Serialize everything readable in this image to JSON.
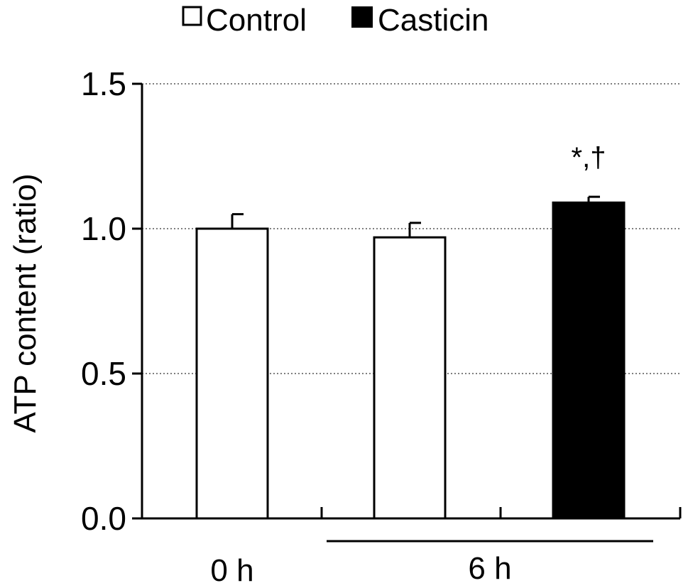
{
  "chart_data": {
    "type": "bar",
    "title": "",
    "xlabel": "",
    "ylabel": "ATP content (ratio)",
    "ylim": [
      0,
      1.5
    ],
    "yticks": [
      "0.0",
      "0.5",
      "1.0",
      "1.5"
    ],
    "grid": "horizontal dotted",
    "legend_position": "top",
    "legend": [
      {
        "name": "Control",
        "color": "#ffffff"
      },
      {
        "name": "Casticin",
        "color": "#000000"
      }
    ],
    "group_labels": [
      "0 h",
      "6 h"
    ],
    "bars": [
      {
        "group": "0 h",
        "series": "Control",
        "value": 1.0,
        "error": 0.05,
        "color": "#ffffff"
      },
      {
        "group": "6 h",
        "series": "Control",
        "value": 0.97,
        "error": 0.05,
        "color": "#ffffff"
      },
      {
        "group": "6 h",
        "series": "Casticin",
        "value": 1.09,
        "error": 0.02,
        "color": "#000000",
        "annotation": "*,†"
      }
    ]
  }
}
